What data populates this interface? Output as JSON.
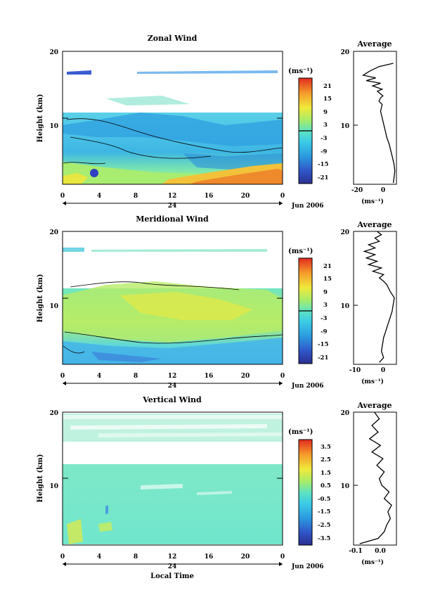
{
  "chart_data": [
    {
      "type": "heatmap",
      "title": "Zonal Wind",
      "ylabel": "Height (km)",
      "ylim": [
        0,
        20
      ],
      "y_ticks": [
        "10",
        "20"
      ],
      "x_ticks": [
        "0",
        "4",
        "8",
        "12",
        "16",
        "20",
        "0"
      ],
      "date_row": {
        "day": "24",
        "label": "Jun 2006"
      },
      "colorbar": {
        "unit": "(ms⁻¹)",
        "ticks": [
          "21",
          "15",
          "9",
          "3",
          "-3",
          "-9",
          "-15",
          "-21"
        ],
        "zero_line": 0
      },
      "profile": {
        "title": "Average",
        "xlim": [
          -20,
          7
        ],
        "x_ticks": [
          "-20",
          "0"
        ],
        "xlabel": "(ms⁻¹)",
        "y_ticks": [
          "10",
          "20"
        ],
        "points": [
          [
            5,
            0.2
          ],
          [
            5.5,
            1
          ],
          [
            6,
            2
          ],
          [
            5.5,
            3
          ],
          [
            4.5,
            4
          ],
          [
            3.5,
            5
          ],
          [
            2.5,
            6
          ],
          [
            1,
            7
          ],
          [
            0,
            8
          ],
          [
            -1,
            9
          ],
          [
            -2,
            10
          ],
          [
            -3,
            11
          ],
          [
            -2,
            12
          ],
          [
            -4,
            12.5
          ],
          [
            -3,
            13
          ],
          [
            -1.5,
            13.3
          ],
          [
            -5,
            14
          ],
          [
            -2,
            14.3
          ],
          [
            -8,
            14.8
          ],
          [
            -3,
            15.2
          ],
          [
            -12,
            15.6
          ],
          [
            -6,
            16
          ],
          [
            -14,
            16.4
          ],
          [
            -10,
            17
          ],
          [
            -4,
            17.7
          ],
          [
            5,
            18.2
          ]
        ]
      }
    },
    {
      "type": "heatmap",
      "title": "Meridional Wind",
      "ylabel": "Height (km)",
      "ylim": [
        0,
        20
      ],
      "y_ticks": [
        "10",
        "20"
      ],
      "x_ticks": [
        "0",
        "4",
        "8",
        "12",
        "16",
        "20",
        "0"
      ],
      "date_row": {
        "day": "24",
        "label": "Jun 2006"
      },
      "colorbar": {
        "unit": "(ms⁻¹)",
        "ticks": [
          "21",
          "15",
          "9",
          "3",
          "-3",
          "-9",
          "-15",
          "-21"
        ],
        "zero_line": 0
      },
      "profile": {
        "title": "Average",
        "xlim": [
          -15,
          5
        ],
        "x_ticks": [
          "-10",
          "0"
        ],
        "xlabel": "(ms⁻¹)",
        "y_ticks": [
          "10",
          "20"
        ],
        "points": [
          [
            -3,
            0.3
          ],
          [
            -1,
            1
          ],
          [
            -2,
            2
          ],
          [
            -1.5,
            3
          ],
          [
            -1,
            4
          ],
          [
            0,
            5
          ],
          [
            1,
            6
          ],
          [
            2,
            7
          ],
          [
            3,
            8
          ],
          [
            3.5,
            9
          ],
          [
            4,
            10
          ],
          [
            2,
            11
          ],
          [
            0.5,
            12
          ],
          [
            -1,
            12.5
          ],
          [
            -3,
            13
          ],
          [
            -1,
            13.5
          ],
          [
            -6,
            14
          ],
          [
            -2,
            14.5
          ],
          [
            -8,
            15
          ],
          [
            -4,
            15.5
          ],
          [
            -9,
            16
          ],
          [
            -5,
            16.5
          ],
          [
            -10,
            17
          ],
          [
            -5,
            17.5
          ],
          [
            -8,
            18
          ],
          [
            -3,
            18.5
          ],
          [
            -5,
            19
          ],
          [
            -2,
            19.5
          ],
          [
            -4,
            20
          ]
        ]
      }
    },
    {
      "type": "heatmap",
      "title": "Vertical Wind",
      "ylabel": "Height (km)",
      "ylim": [
        0,
        20
      ],
      "y_ticks": [
        "10",
        "20"
      ],
      "x_ticks": [
        "0",
        "4",
        "8",
        "12",
        "16",
        "20",
        "0"
      ],
      "date_row": {
        "day": "24",
        "label": "Jun 2006"
      },
      "xlabel": "Local Time",
      "colorbar": {
        "unit": "(ms⁻¹)",
        "ticks": [
          "3.5",
          "2.5",
          "1.5",
          "0.5",
          "-0.5",
          "-1.5",
          "-2.5",
          "-3.5"
        ]
      },
      "profile": {
        "title": "Average",
        "xlim": [
          -0.15,
          0.2
        ],
        "x_ticks": [
          "-0.1",
          "0.0"
        ],
        "xlabel": "(ms⁻¹)",
        "y_ticks": [
          "10",
          "20"
        ],
        "points": [
          [
            -0.1,
            0.2
          ],
          [
            0.05,
            1
          ],
          [
            0.1,
            2
          ],
          [
            0.12,
            3
          ],
          [
            0.15,
            4
          ],
          [
            0.13,
            5
          ],
          [
            0.16,
            6
          ],
          [
            0.1,
            7
          ],
          [
            0.14,
            8
          ],
          [
            0.08,
            9
          ],
          [
            0.06,
            10
          ],
          [
            0.1,
            11
          ],
          [
            0.04,
            12
          ],
          [
            0.09,
            13
          ],
          [
            0.0,
            14
          ],
          [
            0.07,
            15
          ],
          [
            -0.02,
            16
          ],
          [
            0.05,
            17
          ],
          [
            0.0,
            18
          ],
          [
            0.06,
            19
          ],
          [
            0.02,
            20
          ]
        ]
      }
    }
  ]
}
